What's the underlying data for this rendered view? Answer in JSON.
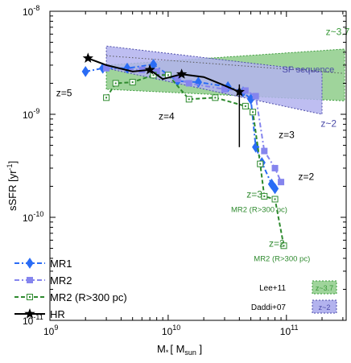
{
  "chart_data": {
    "type": "line",
    "xlabel_main": "M",
    "xlabel_sub": "*",
    "xlabel_unit_main": "[ M",
    "xlabel_unit_sub": "sun",
    "xlabel_unit_end": " ]",
    "ylabel_main": "sSFR [yr",
    "ylabel_sup": "-1",
    "ylabel_end": "]",
    "x_scale": "log",
    "y_scale": "log",
    "xlim": [
      1000000000.0,
      320000000000.0
    ],
    "ylim": [
      1e-11,
      1e-08
    ],
    "x_ticks": [
      {
        "value": 1000000000.0,
        "base": "10",
        "exp": "9"
      },
      {
        "value": 10000000000.0,
        "base": "10",
        "exp": "10"
      },
      {
        "value": 100000000000.0,
        "base": "10",
        "exp": "11"
      }
    ],
    "y_ticks": [
      {
        "value": 1e-11,
        "base": "10",
        "exp": "-11"
      },
      {
        "value": 1e-10,
        "base": "10",
        "exp": "-10"
      },
      {
        "value": 1e-09,
        "base": "10",
        "exp": "-9"
      },
      {
        "value": 1e-08,
        "base": "10",
        "exp": "-8"
      }
    ],
    "regions": [
      {
        "name": "z~3.7",
        "label": "z~3.7",
        "color": "#9fd49b",
        "edge": "#3a9a3a",
        "points": [
          [
            3000000000.0,
            1.75e-09
          ],
          [
            3000000000.0,
            3e-09
          ],
          [
            310000000000.0,
            4.3e-09
          ],
          [
            310000000000.0,
            1.35e-09
          ]
        ]
      },
      {
        "name": "z~2",
        "label": "z~2",
        "color": "#b3b3ee",
        "edge": "#4a4aa8",
        "points": [
          [
            3000000000.0,
            2.8e-09
          ],
          [
            3000000000.0,
            4.6e-09
          ],
          [
            200000000000.0,
            2.6e-09
          ],
          [
            200000000000.0,
            1e-09
          ]
        ]
      }
    ],
    "sf_sequence_label": "SF sequence",
    "sf_sequence_line": [
      [
        3000000000.0,
        3.7e-09
      ],
      [
        300000000000.0,
        2.5e-09
      ]
    ],
    "series": [
      {
        "name": "MR1",
        "color": "#2a6cf5",
        "dash": "6,3,2,3",
        "marker": "diamond",
        "points": [
          [
            2000000000.0,
            2.6e-09
          ],
          [
            2800000000.0,
            2.8e-09
          ],
          [
            4500000000.0,
            2.8e-09
          ],
          [
            7500000000.0,
            3.05e-09
          ],
          [
            12000000000.0,
            2.1e-09
          ],
          [
            18000000000.0,
            2.05e-09
          ],
          [
            32000000000.0,
            1.85e-09
          ],
          [
            43000000000.0,
            1.65e-09
          ],
          [
            50000000000.0,
            1.4e-09
          ],
          [
            55000000000.0,
            4.8e-10
          ],
          [
            62000000000.0,
            3.4e-10
          ],
          [
            75000000000.0,
            2.1e-10
          ],
          [
            80000000000.0,
            1.9e-10
          ]
        ]
      },
      {
        "name": "MR2",
        "color": "#8585ee",
        "dash": "6,3,2,3",
        "marker": "square",
        "points": [
          [
            3000000000.0,
            2.8e-09
          ],
          [
            6000000000.0,
            2.7e-09
          ],
          [
            8000000000.0,
            2.6e-09
          ],
          [
            12000000000.0,
            2.2e-09
          ],
          [
            15000000000.0,
            2e-09
          ],
          [
            30000000000.0,
            1.75e-09
          ],
          [
            45000000000.0,
            1.7e-09
          ],
          [
            55000000000.0,
            1.5e-09
          ],
          [
            65000000000.0,
            4.4e-10
          ],
          [
            80000000000.0,
            3e-10
          ],
          [
            90000000000.0,
            2.2e-10
          ]
        ]
      },
      {
        "name": "MR2 (R>300 pc)",
        "color": "#2e8a2e",
        "dash": "5,3",
        "marker": "open-square",
        "points": [
          [
            3000000000.0,
            1.45e-09
          ],
          [
            3600000000.0,
            2e-09
          ],
          [
            5000000000.0,
            2.05e-09
          ],
          [
            7500000000.0,
            2.4e-09
          ],
          [
            10000000000.0,
            2.4e-09
          ],
          [
            15000000000.0,
            1.4e-09
          ],
          [
            25000000000.0,
            1.45e-09
          ],
          [
            45000000000.0,
            1.2e-09
          ],
          [
            52000000000.0,
            1.05e-09
          ],
          [
            60000000000.0,
            3.3e-10
          ],
          [
            65000000000.0,
            1.6e-10
          ],
          [
            80000000000.0,
            1.5e-10
          ],
          [
            95000000000.0,
            5.3e-11
          ]
        ]
      },
      {
        "name": "HR",
        "color": "#000000",
        "dash": "",
        "marker": "star",
        "points": [
          [
            2100000000.0,
            3.5e-09
          ],
          [
            3000000000.0,
            3e-09
          ],
          [
            5000000000.0,
            2.6e-09
          ],
          [
            7000000000.0,
            2.7e-09
          ],
          [
            9000000000.0,
            2.2e-09
          ],
          [
            13000000000.0,
            2.45e-09
          ],
          [
            20000000000.0,
            2.3e-09
          ],
          [
            30000000000.0,
            1.9e-09
          ],
          [
            40000000000.0,
            1.65e-09
          ]
        ]
      }
    ],
    "hr_errorbar": {
      "x": 40000000000.0,
      "y_low": 4.8e-10,
      "y_high": 1.95e-09
    },
    "redshift_labels": [
      {
        "text": "z=5",
        "x": 1130000000.0,
        "y": 1.5e-09,
        "color": "#000000"
      },
      {
        "text": "z=4",
        "x": 8300000000.0,
        "y": 8.9e-10,
        "color": "#000000"
      },
      {
        "text": "z=3",
        "x": 86000000000.0,
        "y": 5.9e-10,
        "color": "#000000"
      },
      {
        "text": "z=2",
        "x": 126000000000.0,
        "y": 2.3e-10,
        "color": "#000000"
      },
      {
        "text": "z=3",
        "x": 46000000000.0,
        "y": 1.55e-10,
        "color": "#2e8a2e"
      },
      {
        "text": "MR2 (R>300 pc)",
        "x": 34000000000.0,
        "y": 1.12e-10,
        "color": "#2e8a2e"
      },
      {
        "text": "z=2",
        "x": 71000000000.0,
        "y": 5.2e-11,
        "color": "#2e8a2e"
      },
      {
        "text": "MR2 (R>300 pc)",
        "x": 53000000000.0,
        "y": 3.75e-11,
        "color": "#2e8a2e"
      }
    ],
    "legend": {
      "placement": "lower-left",
      "entries": [
        "MR1",
        "MR2",
        "MR2 (R>300 pc)",
        "HR"
      ]
    },
    "region_legend": {
      "placement": "lower-right",
      "entries": [
        {
          "source": "Lee+11",
          "label": "z~3.7",
          "region": 0
        },
        {
          "source": "Daddi+07",
          "label": "z~2",
          "region": 1
        }
      ]
    }
  }
}
